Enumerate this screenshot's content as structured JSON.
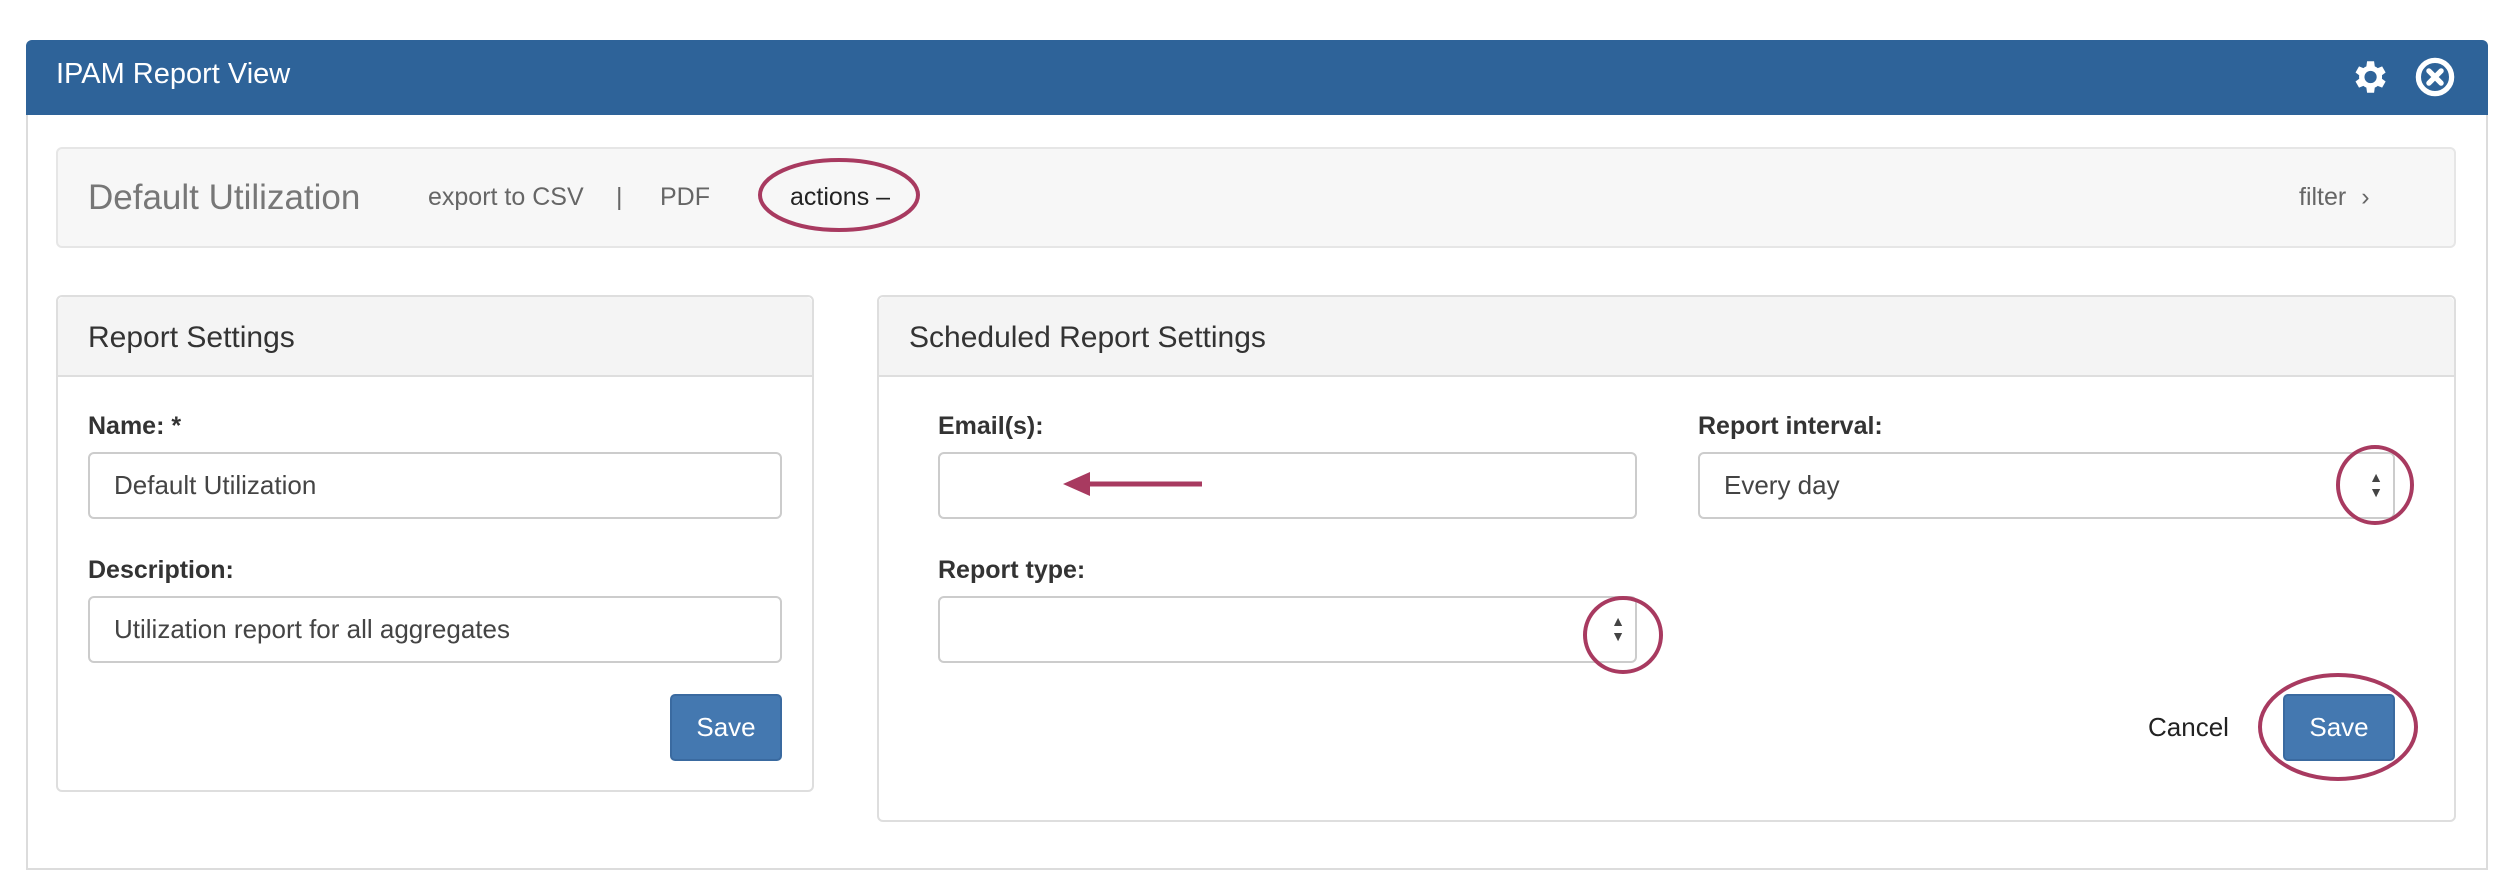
{
  "window": {
    "title": "IPAM Report View",
    "icons": [
      "gear-icon",
      "close-circle-icon"
    ],
    "header_color": "#2e6399"
  },
  "toolbar": {
    "report_name": "Default Utilization",
    "export_csv": "export to CSV",
    "separator": "|",
    "pdf": "PDF",
    "actions": "actions –",
    "filter": "filter",
    "filter_icon": "chevron-right-icon"
  },
  "report_settings": {
    "title": "Report Settings",
    "name_label": "Name: *",
    "name_value": "Default Utilization",
    "description_label": "Description:",
    "description_value": "Utilization report for all aggregates",
    "save": "Save"
  },
  "scheduled": {
    "title": "Scheduled Report Settings",
    "emails_label": "Email(s):",
    "emails_value": "",
    "interval_label": "Report interval:",
    "interval_value": "Every day",
    "type_label": "Report type:",
    "type_value": "",
    "cancel": "Cancel",
    "save": "Save"
  },
  "annotation_color": "#a83a60",
  "button_color": "#4478b0"
}
